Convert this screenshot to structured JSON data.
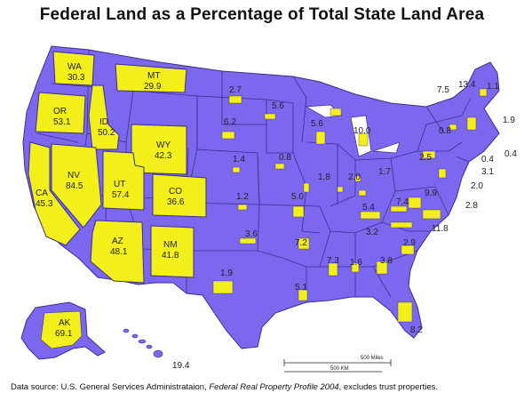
{
  "title": "Federal Land as a Percentage of Total State Land Area",
  "source": {
    "prefix": "Data source: U.S. General Services Administrataion, ",
    "publication": "Federal Real Property Profile 2004",
    "suffix": ", excludes trust properties."
  },
  "scale": {
    "miles": "500 Miles",
    "km": "500 KM"
  },
  "colors": {
    "land": "#7b68ee",
    "highlight": "#f2ef1a",
    "border": "#3a2f8f"
  },
  "states": [
    {
      "abbr": "WA",
      "value": "30.3"
    },
    {
      "abbr": "OR",
      "value": "53.1"
    },
    {
      "abbr": "ID",
      "value": "50.2"
    },
    {
      "abbr": "MT",
      "value": "29.9"
    },
    {
      "abbr": "WY",
      "value": "42.3"
    },
    {
      "abbr": "NV",
      "value": "84.5"
    },
    {
      "abbr": "CA",
      "value": "45.3"
    },
    {
      "abbr": "UT",
      "value": "57.4"
    },
    {
      "abbr": "CO",
      "value": "36.6"
    },
    {
      "abbr": "AZ",
      "value": "48.1"
    },
    {
      "abbr": "NM",
      "value": "41.8"
    },
    {
      "abbr": "AK",
      "value": "69.1"
    }
  ],
  "values": [
    {
      "id": "ND",
      "value": "2.7"
    },
    {
      "id": "SD",
      "value": "6.2"
    },
    {
      "id": "MN",
      "value": "5.6"
    },
    {
      "id": "WI",
      "value": "5.6"
    },
    {
      "id": "MI",
      "value": "10.0"
    },
    {
      "id": "NE",
      "value": "1.4"
    },
    {
      "id": "IA",
      "value": "0.8"
    },
    {
      "id": "IL",
      "value": "1.8"
    },
    {
      "id": "IN",
      "value": "2.0"
    },
    {
      "id": "OH",
      "value": "1.7"
    },
    {
      "id": "PA",
      "value": "2.5"
    },
    {
      "id": "NY",
      "value": "0.8"
    },
    {
      "id": "ME",
      "value": "1.1"
    },
    {
      "id": "NH",
      "value": "13.4"
    },
    {
      "id": "VT",
      "value": "7.5"
    },
    {
      "id": "MA",
      "value": "1.9"
    },
    {
      "id": "RI",
      "value": "0.4"
    },
    {
      "id": "CT",
      "value": "0.4"
    },
    {
      "id": "NJ",
      "value": "3.1"
    },
    {
      "id": "DE",
      "value": "2.0"
    },
    {
      "id": "MD",
      "value": "2.8"
    },
    {
      "id": "KS",
      "value": "1.2"
    },
    {
      "id": "MO",
      "value": "5.0"
    },
    {
      "id": "KY",
      "value": "5.4"
    },
    {
      "id": "WV",
      "value": "7.4"
    },
    {
      "id": "VA",
      "value": "9.9"
    },
    {
      "id": "NC",
      "value": "11.8"
    },
    {
      "id": "TN",
      "value": "3.2"
    },
    {
      "id": "OK",
      "value": "3.6"
    },
    {
      "id": "AR",
      "value": "7.2"
    },
    {
      "id": "SC",
      "value": "2.9"
    },
    {
      "id": "MS",
      "value": "7.3"
    },
    {
      "id": "AL",
      "value": "1.6"
    },
    {
      "id": "GA",
      "value": "3.8"
    },
    {
      "id": "TX",
      "value": "1.9"
    },
    {
      "id": "LA",
      "value": "5.1"
    },
    {
      "id": "FL",
      "value": "8.2"
    },
    {
      "id": "HI",
      "value": "19.4"
    }
  ]
}
